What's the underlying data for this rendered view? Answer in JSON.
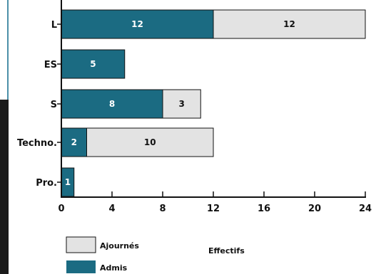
{
  "chart_data": {
    "type": "bar",
    "orientation": "horizontal",
    "stacked": true,
    "categories": [
      "L",
      "ES",
      "S",
      "Techno.",
      "Pro."
    ],
    "series": [
      {
        "name": "Admis",
        "values": [
          12,
          5,
          8,
          2,
          1
        ],
        "color": "#1b6b82",
        "label_color": "#ffffff"
      },
      {
        "name": "Ajournés",
        "values": [
          12,
          0,
          3,
          10,
          0
        ],
        "color": "#e3e3e3",
        "label_color": "#111111"
      }
    ],
    "xlim": [
      0,
      24
    ],
    "xticks": [
      "0",
      "4",
      "8",
      "12",
      "16",
      "20",
      "24"
    ],
    "xlabel": "Effectifs",
    "legend": [
      "Ajournés",
      "Admis"
    ],
    "legend_position": "bottom-left"
  }
}
